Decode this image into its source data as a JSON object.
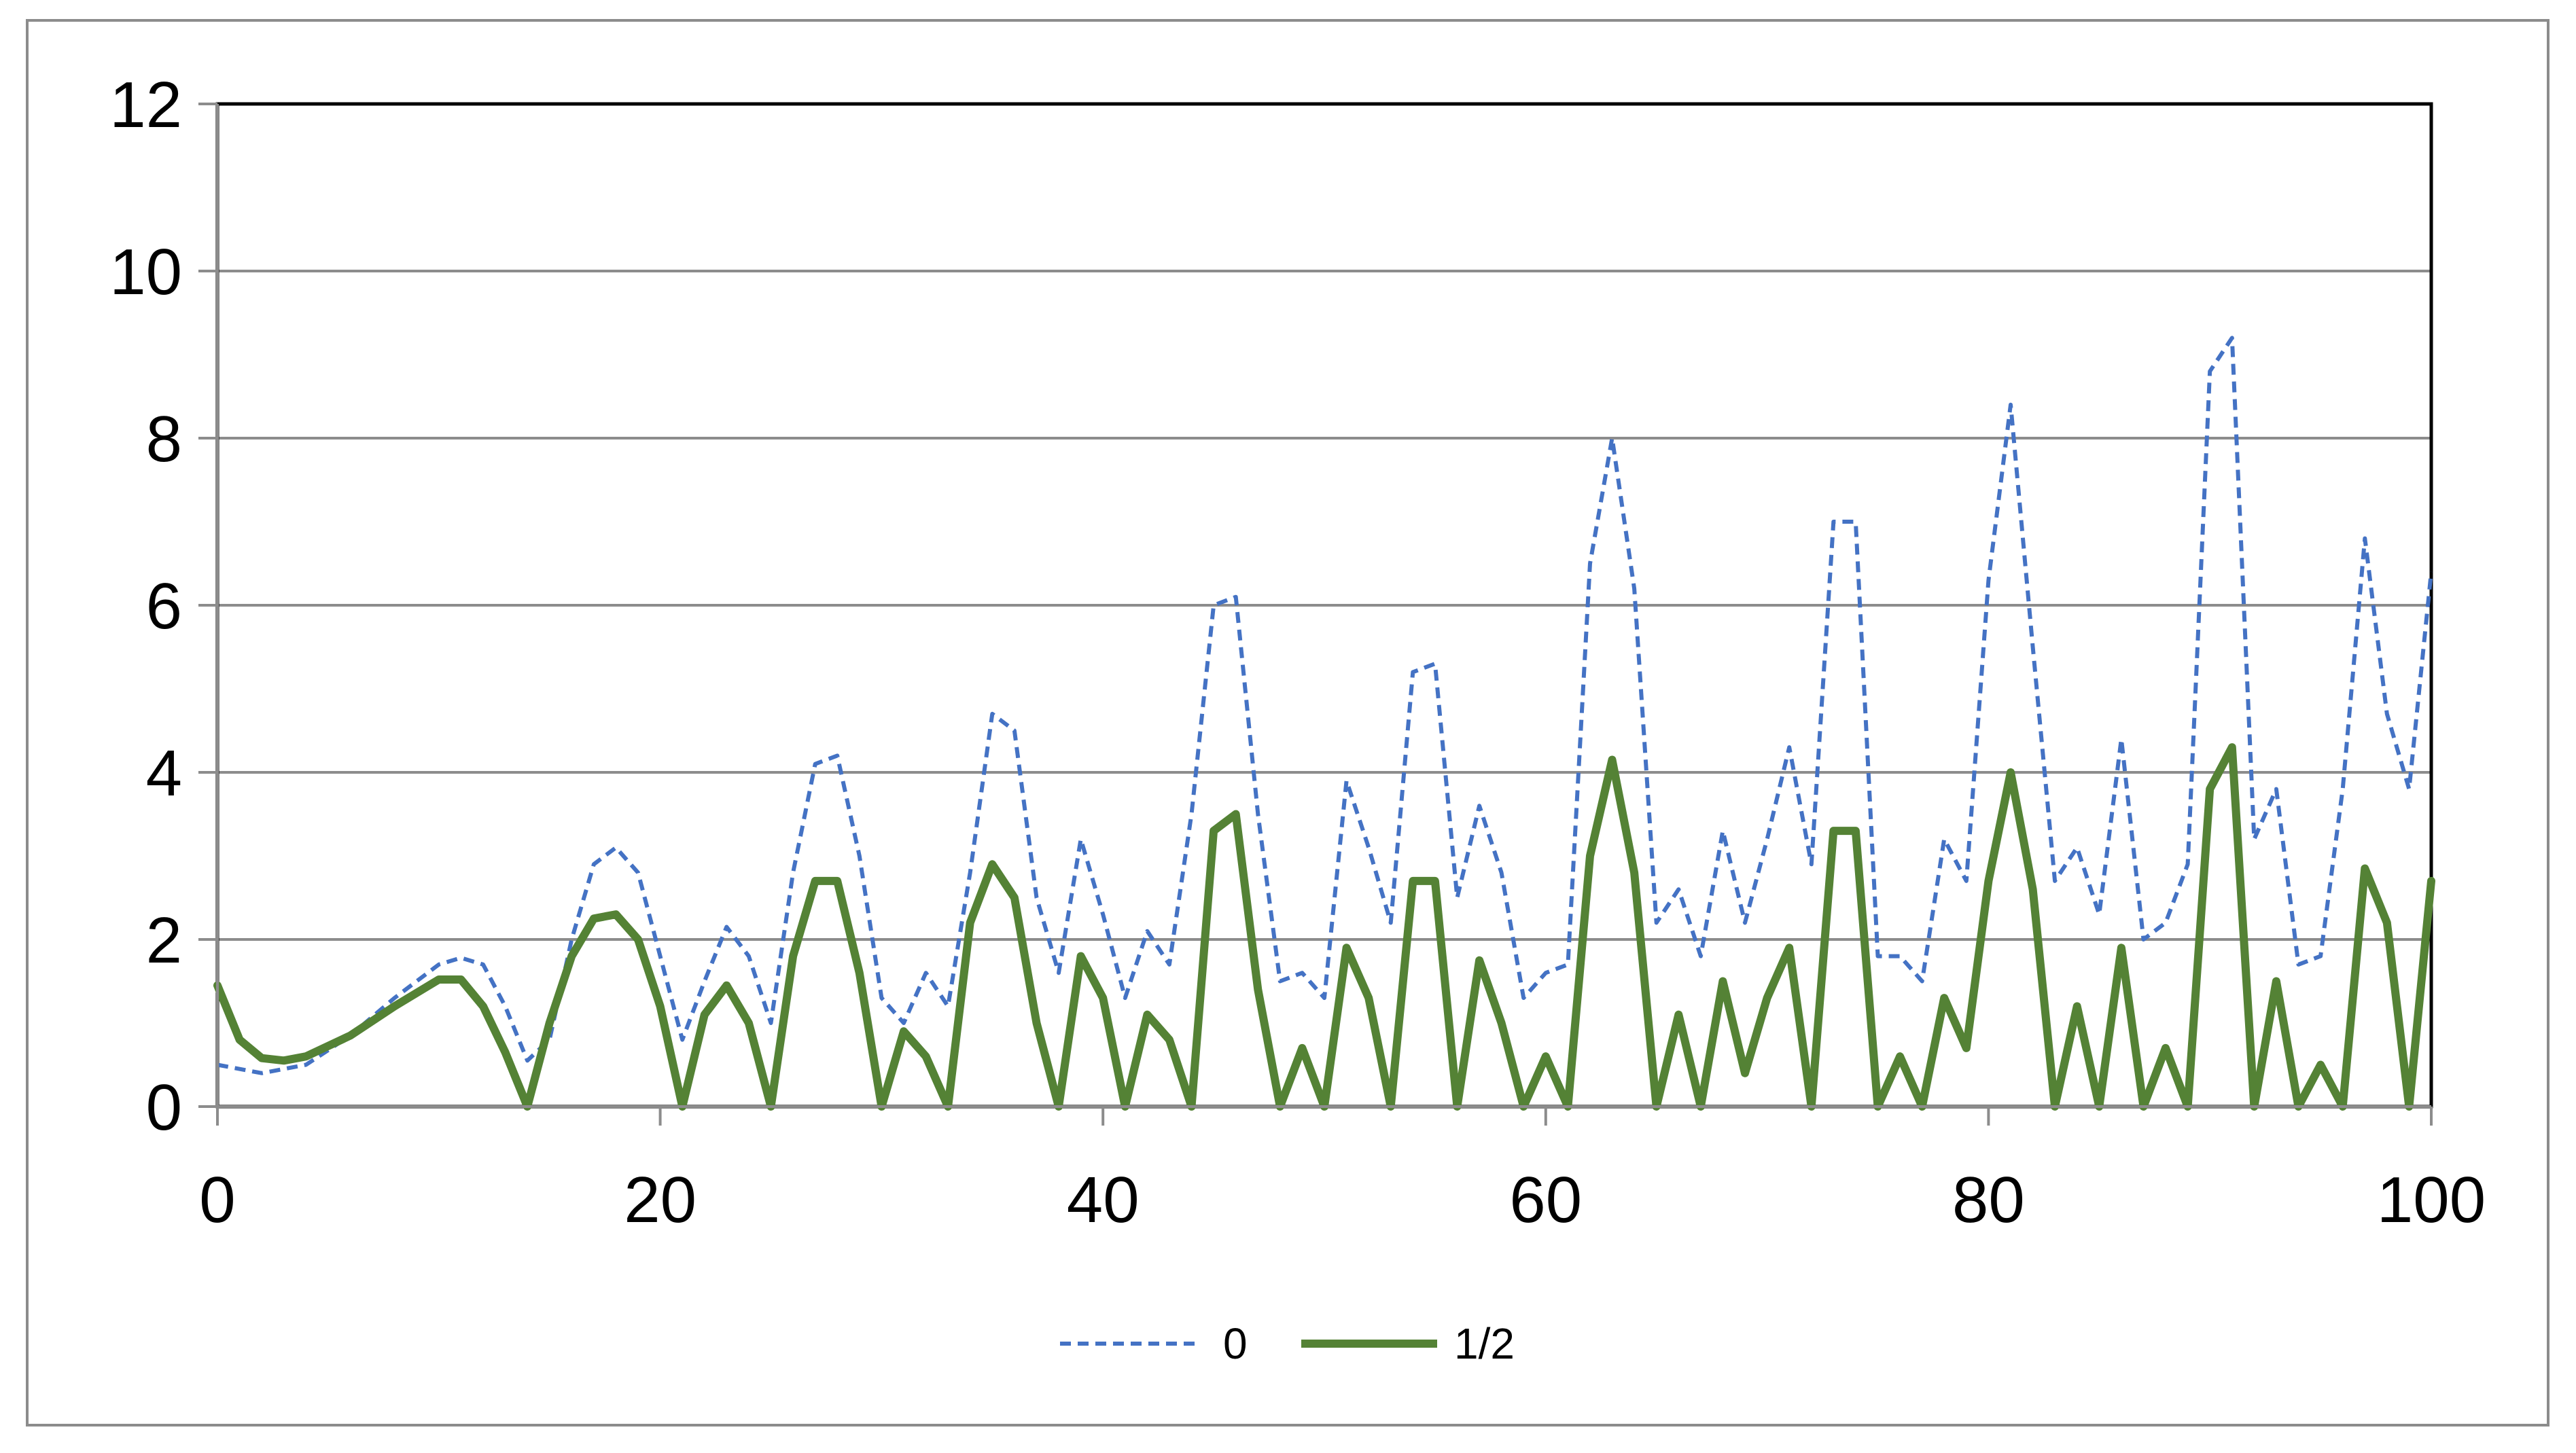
{
  "chart_data": {
    "type": "line",
    "title": "",
    "xlabel": "",
    "ylabel": "",
    "xlim": [
      0,
      100
    ],
    "ylim": [
      0,
      12
    ],
    "x_ticks": [
      0,
      20,
      40,
      60,
      80,
      100
    ],
    "y_ticks": [
      0,
      2,
      4,
      6,
      8,
      10,
      12
    ],
    "grid": "horizontal",
    "legend_position": "bottom",
    "series": [
      {
        "name": "0",
        "color": "#4472c4",
        "style": "dashed",
        "points": [
          [
            0,
            0.5
          ],
          [
            2,
            0.4
          ],
          [
            4,
            0.5
          ],
          [
            6,
            0.85
          ],
          [
            8,
            1.3
          ],
          [
            10,
            1.7
          ],
          [
            11,
            1.78
          ],
          [
            12,
            1.7
          ],
          [
            13,
            1.2
          ],
          [
            14,
            0.55
          ],
          [
            15,
            0.8
          ],
          [
            16,
            2.0
          ],
          [
            17,
            2.9
          ],
          [
            18,
            3.1
          ],
          [
            19,
            2.8
          ],
          [
            20,
            1.8
          ],
          [
            21,
            0.8
          ],
          [
            22,
            1.5
          ],
          [
            23,
            2.15
          ],
          [
            24,
            1.8
          ],
          [
            25,
            1.0
          ],
          [
            26,
            2.8
          ],
          [
            27,
            4.1
          ],
          [
            28,
            4.2
          ],
          [
            29,
            3.0
          ],
          [
            30,
            1.3
          ],
          [
            31,
            1.0
          ],
          [
            32,
            1.6
          ],
          [
            33,
            1.2
          ],
          [
            34,
            2.8
          ],
          [
            35,
            4.7
          ],
          [
            36,
            4.5
          ],
          [
            37,
            2.5
          ],
          [
            38,
            1.6
          ],
          [
            39,
            3.2
          ],
          [
            40,
            2.3
          ],
          [
            41,
            1.3
          ],
          [
            42,
            2.1
          ],
          [
            43,
            1.7
          ],
          [
            44,
            3.5
          ],
          [
            45,
            6.0
          ],
          [
            46,
            6.1
          ],
          [
            47,
            3.5
          ],
          [
            48,
            1.5
          ],
          [
            49,
            1.6
          ],
          [
            50,
            1.3
          ],
          [
            51,
            3.9
          ],
          [
            52,
            3.1
          ],
          [
            53,
            2.2
          ],
          [
            54,
            5.2
          ],
          [
            55,
            5.3
          ],
          [
            56,
            2.5
          ],
          [
            57,
            3.6
          ],
          [
            58,
            2.8
          ],
          [
            59,
            1.3
          ],
          [
            60,
            1.6
          ],
          [
            61,
            1.7
          ],
          [
            62,
            6.5
          ],
          [
            63,
            8.0
          ],
          [
            64,
            6.2
          ],
          [
            65,
            2.2
          ],
          [
            66,
            2.6
          ],
          [
            67,
            1.8
          ],
          [
            68,
            3.3
          ],
          [
            69,
            2.2
          ],
          [
            70,
            3.2
          ],
          [
            71,
            4.3
          ],
          [
            72,
            2.9
          ],
          [
            73,
            7.0
          ],
          [
            74,
            7.0
          ],
          [
            75,
            1.8
          ],
          [
            76,
            1.8
          ],
          [
            77,
            1.5
          ],
          [
            78,
            3.2
          ],
          [
            79,
            2.7
          ],
          [
            80,
            6.3
          ],
          [
            81,
            8.4
          ],
          [
            82,
            5.5
          ],
          [
            83,
            2.7
          ],
          [
            84,
            3.1
          ],
          [
            85,
            2.3
          ],
          [
            86,
            4.4
          ],
          [
            87,
            2.0
          ],
          [
            88,
            2.2
          ],
          [
            89,
            2.9
          ],
          [
            90,
            8.8
          ],
          [
            91,
            9.2
          ],
          [
            92,
            3.2
          ],
          [
            93,
            3.8
          ],
          [
            94,
            1.7
          ],
          [
            95,
            1.8
          ],
          [
            96,
            3.8
          ],
          [
            97,
            6.8
          ],
          [
            98,
            4.7
          ],
          [
            99,
            3.8
          ],
          [
            100,
            6.4
          ]
        ]
      },
      {
        "name": "1/2",
        "color": "#548235",
        "style": "solid",
        "points": [
          [
            0,
            1.45
          ],
          [
            1,
            0.8
          ],
          [
            2,
            0.58
          ],
          [
            3,
            0.55
          ],
          [
            4,
            0.6
          ],
          [
            6,
            0.85
          ],
          [
            8,
            1.2
          ],
          [
            10,
            1.52
          ],
          [
            11,
            1.52
          ],
          [
            12,
            1.2
          ],
          [
            13,
            0.65
          ],
          [
            14,
            0.0
          ],
          [
            15,
            1.0
          ],
          [
            16,
            1.8
          ],
          [
            17,
            2.25
          ],
          [
            18,
            2.3
          ],
          [
            19,
            2.0
          ],
          [
            20,
            1.2
          ],
          [
            21,
            0.0
          ],
          [
            22,
            1.1
          ],
          [
            23,
            1.45
          ],
          [
            24,
            1.0
          ],
          [
            25,
            0.0
          ],
          [
            26,
            1.8
          ],
          [
            27,
            2.7
          ],
          [
            28,
            2.7
          ],
          [
            29,
            1.6
          ],
          [
            30,
            0.0
          ],
          [
            31,
            0.9
          ],
          [
            32,
            0.6
          ],
          [
            33,
            0.0
          ],
          [
            34,
            2.2
          ],
          [
            35,
            2.9
          ],
          [
            36,
            2.5
          ],
          [
            37,
            1.0
          ],
          [
            38,
            0.0
          ],
          [
            39,
            1.8
          ],
          [
            40,
            1.3
          ],
          [
            41,
            0.0
          ],
          [
            42,
            1.1
          ],
          [
            43,
            0.8
          ],
          [
            44,
            0.0
          ],
          [
            45,
            3.3
          ],
          [
            46,
            3.5
          ],
          [
            47,
            1.4
          ],
          [
            48,
            0.0
          ],
          [
            49,
            0.7
          ],
          [
            50,
            0.0
          ],
          [
            51,
            1.9
          ],
          [
            52,
            1.3
          ],
          [
            53,
            0.0
          ],
          [
            54,
            2.7
          ],
          [
            55,
            2.7
          ],
          [
            56,
            0.0
          ],
          [
            57,
            1.75
          ],
          [
            58,
            1.0
          ],
          [
            59,
            0.0
          ],
          [
            60,
            0.6
          ],
          [
            61,
            0.0
          ],
          [
            62,
            3.0
          ],
          [
            63,
            4.15
          ],
          [
            64,
            2.8
          ],
          [
            65,
            0.0
          ],
          [
            66,
            1.1
          ],
          [
            67,
            0.0
          ],
          [
            68,
            1.5
          ],
          [
            69,
            0.4
          ],
          [
            70,
            1.3
          ],
          [
            71,
            1.9
          ],
          [
            72,
            0.0
          ],
          [
            73,
            3.3
          ],
          [
            74,
            3.3
          ],
          [
            75,
            0.0
          ],
          [
            76,
            0.6
          ],
          [
            77,
            0.0
          ],
          [
            78,
            1.3
          ],
          [
            79,
            0.7
          ],
          [
            80,
            2.7
          ],
          [
            81,
            4.0
          ],
          [
            82,
            2.6
          ],
          [
            83,
            0.0
          ],
          [
            84,
            1.2
          ],
          [
            85,
            0.0
          ],
          [
            86,
            1.9
          ],
          [
            87,
            0.0
          ],
          [
            88,
            0.7
          ],
          [
            89,
            0.0
          ],
          [
            90,
            3.8
          ],
          [
            91,
            4.3
          ],
          [
            92,
            0.0
          ],
          [
            93,
            1.5
          ],
          [
            94,
            0.0
          ],
          [
            95,
            0.5
          ],
          [
            96,
            0.0
          ],
          [
            97,
            2.85
          ],
          [
            98,
            2.2
          ],
          [
            99,
            0.0
          ],
          [
            100,
            2.7
          ]
        ]
      }
    ]
  }
}
